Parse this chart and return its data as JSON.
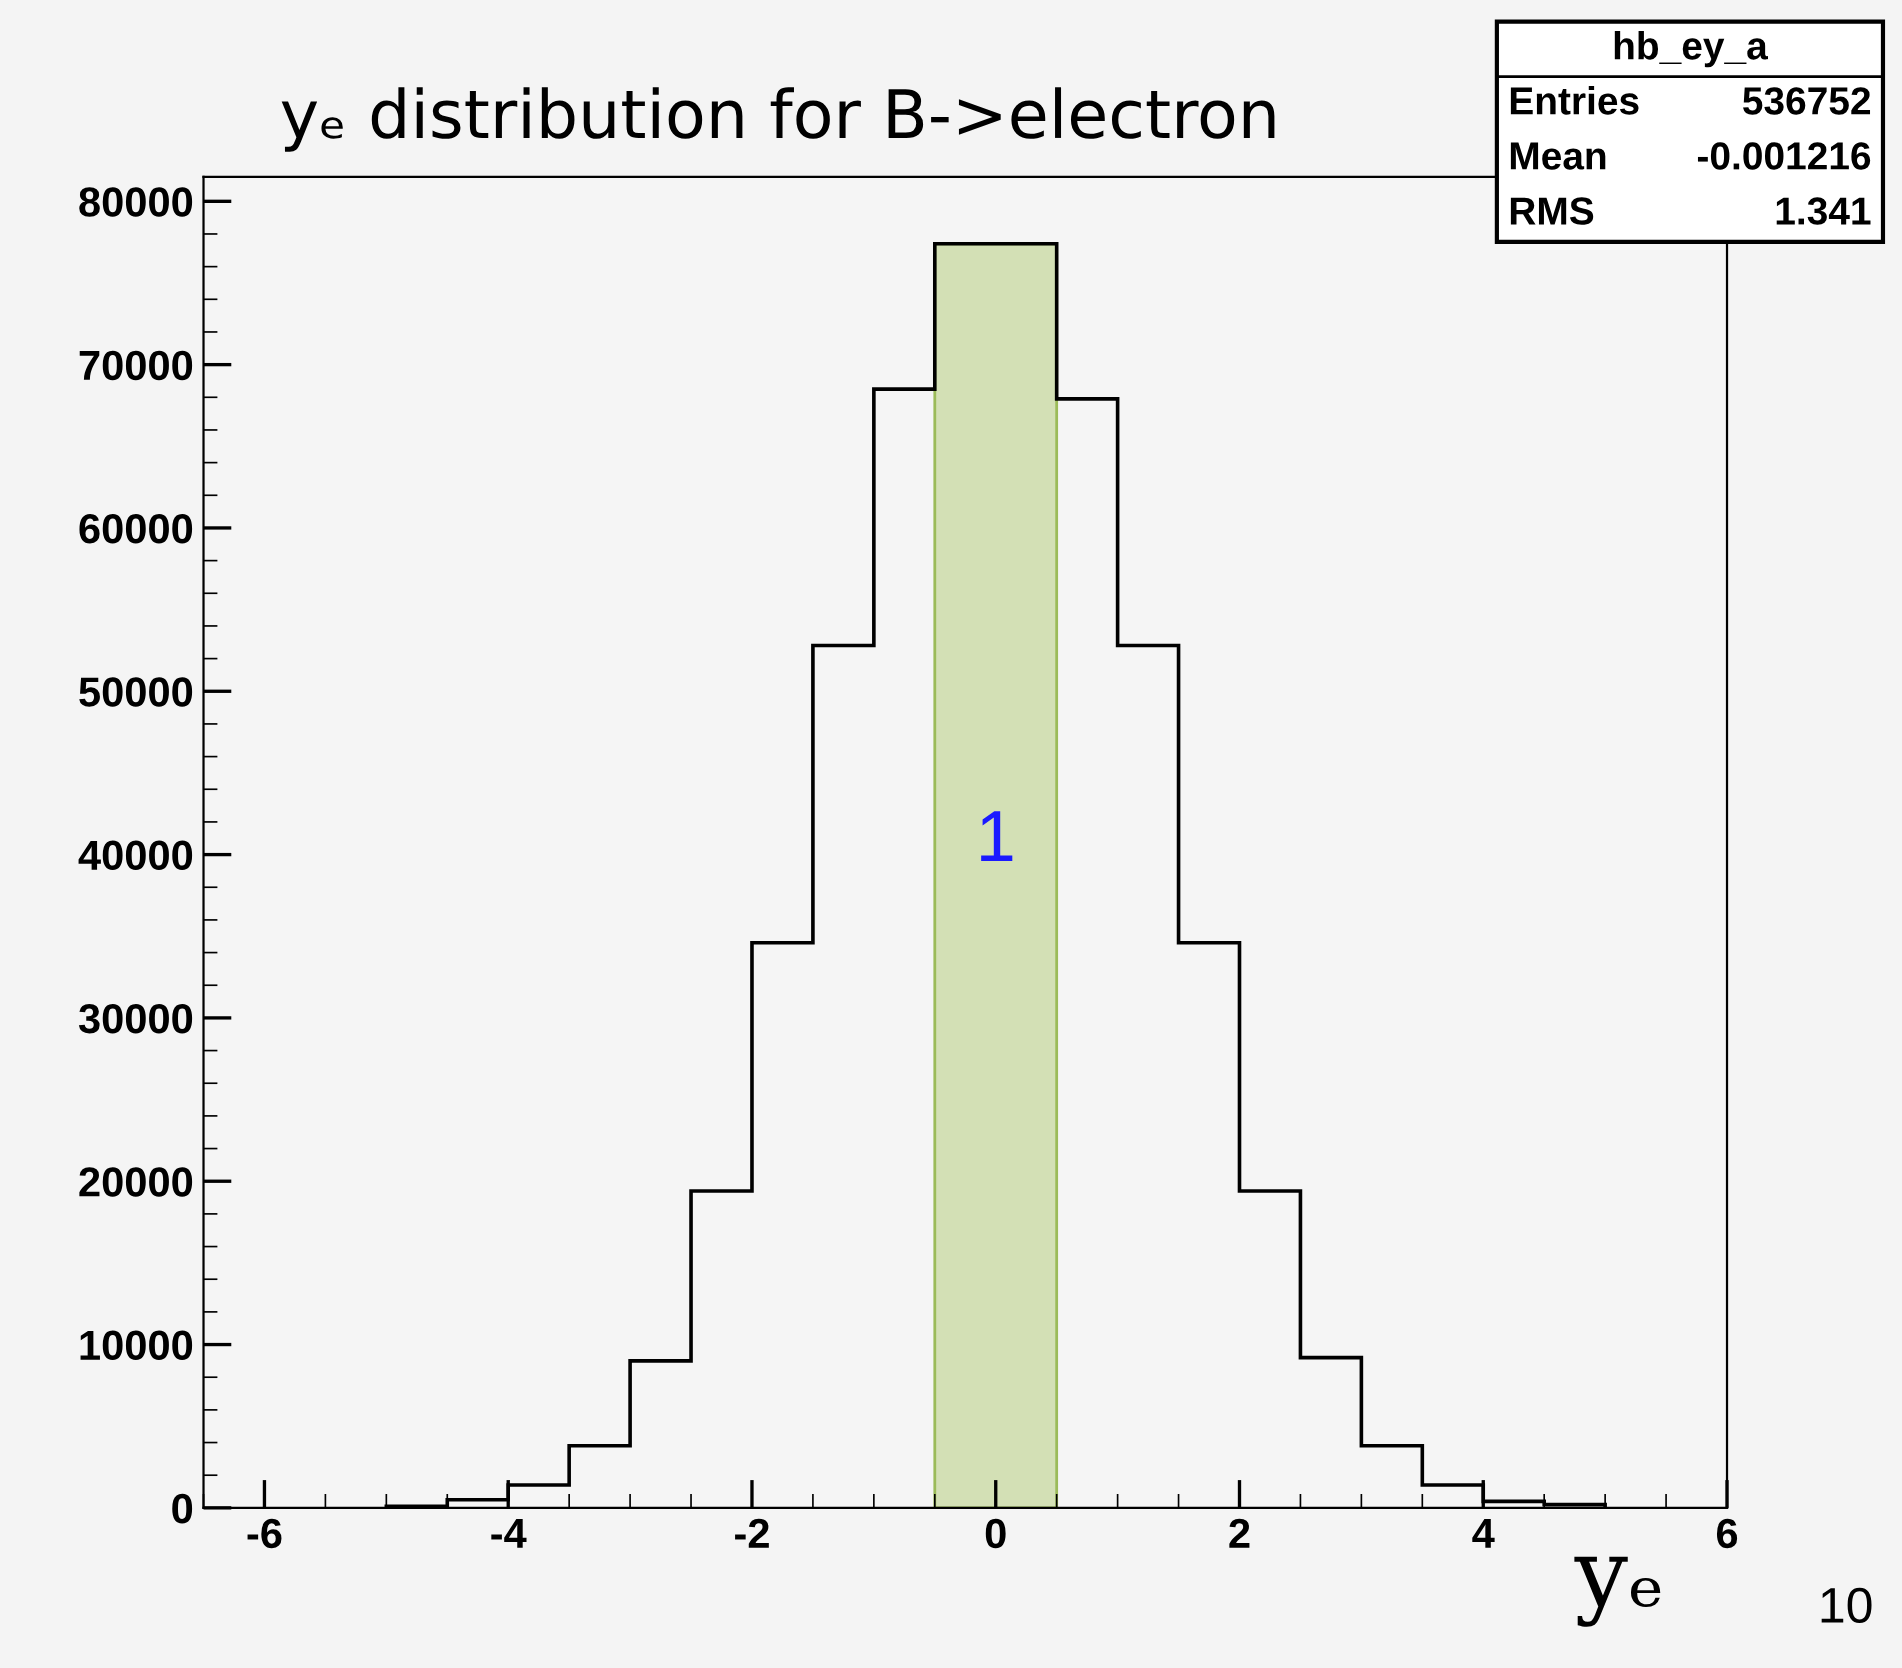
{
  "chart_data": {
    "type": "histogram",
    "title": "yₑ distribution for B->electron",
    "xlabel": "yₑ",
    "bins": [
      -5,
      -4.5,
      -4,
      -3.5,
      -3,
      -2.5,
      -2,
      -1.5,
      -1,
      -0.5,
      0,
      0.5,
      1,
      1.5,
      2,
      2.5,
      3,
      3.5,
      4,
      4.5,
      5
    ],
    "values": [
      100,
      500,
      1400,
      3800,
      9000,
      19400,
      34600,
      52800,
      68500,
      77400,
      77400,
      67900,
      52800,
      34600,
      19400,
      9200,
      3800,
      1400,
      400,
      200
    ],
    "color": "#000000",
    "xlim": [
      -6.5,
      6
    ],
    "xticks": [
      -6,
      -4,
      -2,
      0,
      2,
      4,
      6
    ],
    "ylim": [
      0,
      81500
    ],
    "yticks": [
      0,
      10000,
      20000,
      30000,
      40000,
      50000,
      60000,
      70000,
      80000
    ],
    "grid": false,
    "legend": false,
    "bands": [
      {
        "axis": "x",
        "from": -0.5,
        "to": 0.5,
        "label": "1",
        "color": "#d3e0b5"
      }
    ],
    "annotations": [
      "hb_ey_a",
      "Entries 536752",
      "Mean -0.001216",
      "RMS 1.341",
      "10"
    ]
  }
}
